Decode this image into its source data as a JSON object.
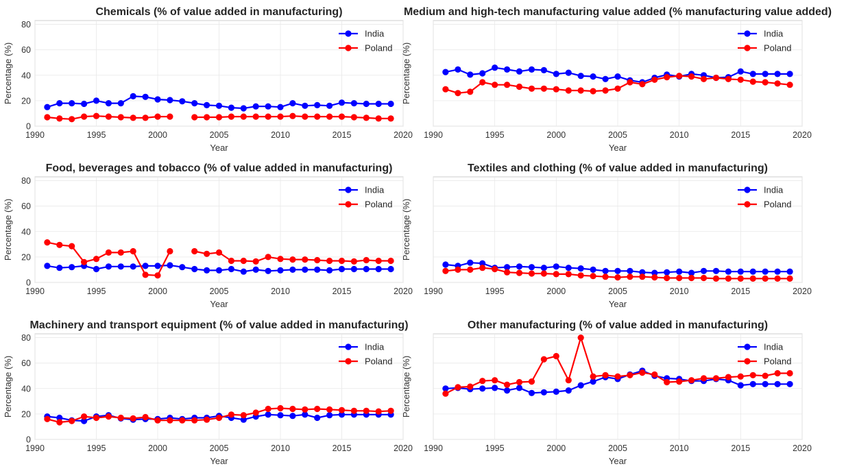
{
  "colors": {
    "India": "#0000ff",
    "Poland": "#ff0000",
    "grid": "#e8e8e8",
    "frame": "#cccccc"
  },
  "chart_data": [
    {
      "type": "line",
      "title": "Chemicals (% of value added in manufacturing)",
      "xlabel": "Year",
      "ylabel": "Percentage (%)",
      "xlim": [
        1990,
        2020
      ],
      "ylim": [
        0,
        83
      ],
      "xticks": [
        "1990",
        "1995",
        "2000",
        "2005",
        "2010",
        "2015",
        "2020"
      ],
      "yticks": [
        "0",
        "20",
        "40",
        "60",
        "80"
      ],
      "grid": true,
      "legend": "top-right",
      "x": [
        1991,
        1992,
        1993,
        1994,
        1995,
        1996,
        1997,
        1998,
        1999,
        2000,
        2001,
        2002,
        2003,
        2004,
        2005,
        2006,
        2007,
        2008,
        2009,
        2010,
        2011,
        2012,
        2013,
        2014,
        2015,
        2016,
        2017,
        2018,
        2019
      ],
      "series": [
        {
          "name": "India",
          "values": [
            15,
            18,
            18,
            17.5,
            20,
            18,
            18,
            23.5,
            23,
            21,
            20.5,
            19.5,
            18,
            16.5,
            16,
            14.5,
            14,
            15.5,
            15.5,
            15,
            18,
            16,
            16.5,
            16,
            18.5,
            18,
            17.5,
            17.5,
            17.5
          ]
        },
        {
          "name": "Poland",
          "values": [
            7,
            6,
            5.5,
            7.5,
            8,
            7.5,
            7,
            6.5,
            6.5,
            7.5,
            7.5,
            null,
            7,
            7,
            7,
            7.5,
            7.5,
            7.5,
            7.5,
            7.5,
            8,
            7.5,
            7.5,
            7.5,
            7.5,
            7,
            6.5,
            6,
            6
          ]
        }
      ]
    },
    {
      "type": "line",
      "title": "Medium and high-tech manufacturing value added (% manufacturing value added)",
      "xlabel": "Year",
      "ylabel": "Percentage (%)",
      "xlim": [
        1990,
        2020
      ],
      "ylim": [
        0,
        83
      ],
      "xticks": [
        "1990",
        "1995",
        "2000",
        "2005",
        "2010",
        "2015",
        "2020"
      ],
      "yticks": [],
      "grid": true,
      "legend": "top-right",
      "x": [
        1991,
        1992,
        1993,
        1994,
        1995,
        1996,
        1997,
        1998,
        1999,
        2000,
        2001,
        2002,
        2003,
        2004,
        2005,
        2006,
        2007,
        2008,
        2009,
        2010,
        2011,
        2012,
        2013,
        2014,
        2015,
        2016,
        2017,
        2018,
        2019
      ],
      "series": [
        {
          "name": "India",
          "values": [
            42.5,
            44.5,
            40.5,
            41.5,
            46,
            44.5,
            43,
            44.5,
            44,
            41,
            42,
            39.5,
            39,
            37,
            39,
            36,
            34.5,
            38,
            40.5,
            39,
            41,
            40,
            38,
            38.5,
            43,
            41,
            41,
            41,
            41
          ]
        },
        {
          "name": "Poland",
          "values": [
            29,
            26,
            27,
            34.5,
            32.5,
            32.5,
            31,
            29.5,
            29.5,
            29,
            28,
            28,
            27.5,
            28,
            29.5,
            34.5,
            33,
            36.5,
            38.5,
            39.5,
            39,
            37,
            38,
            37,
            36.5,
            35,
            34.5,
            33.5,
            32.5
          ]
        }
      ]
    },
    {
      "type": "line",
      "title": "Food, beverages and tobacco (% of value added in manufacturing)",
      "xlabel": "Year",
      "ylabel": "Percentage (%)",
      "xlim": [
        1990,
        2020
      ],
      "ylim": [
        0,
        83
      ],
      "xticks": [
        "1990",
        "1995",
        "2000",
        "2005",
        "2010",
        "2015",
        "2020"
      ],
      "yticks": [
        "0",
        "20",
        "40",
        "60",
        "80"
      ],
      "grid": true,
      "legend": "top-right",
      "x": [
        1991,
        1992,
        1993,
        1994,
        1995,
        1996,
        1997,
        1998,
        1999,
        2000,
        2001,
        2002,
        2003,
        2004,
        2005,
        2006,
        2007,
        2008,
        2009,
        2010,
        2011,
        2012,
        2013,
        2014,
        2015,
        2016,
        2017,
        2018,
        2019
      ],
      "series": [
        {
          "name": "India",
          "values": [
            13,
            11.5,
            12,
            13,
            10.5,
            12.5,
            12.5,
            12.5,
            13,
            13,
            13.5,
            12,
            10.5,
            9.5,
            9.5,
            10.5,
            8.5,
            10,
            9,
            9.5,
            10,
            10,
            10,
            9.5,
            10.5,
            10.5,
            10.5,
            10.5,
            10.5
          ]
        },
        {
          "name": "Poland",
          "values": [
            31.5,
            29.5,
            28.5,
            16,
            18.5,
            23.5,
            23.5,
            24.5,
            6,
            5.5,
            24.5,
            null,
            24.5,
            22.5,
            23.5,
            17,
            17,
            16.5,
            20,
            18.5,
            18,
            18,
            17.5,
            17,
            17,
            16.5,
            17.5,
            17,
            17
          ]
        }
      ]
    },
    {
      "type": "line",
      "title": "Textiles and clothing (% of value added in manufacturing)",
      "xlabel": "Year",
      "ylabel": "Percentage (%)",
      "xlim": [
        1990,
        2020
      ],
      "ylim": [
        0,
        83
      ],
      "xticks": [
        "1990",
        "1995",
        "2000",
        "2005",
        "2010",
        "2015",
        "2020"
      ],
      "yticks": [],
      "grid": true,
      "legend": "top-right",
      "x": [
        1991,
        1992,
        1993,
        1994,
        1995,
        1996,
        1997,
        1998,
        1999,
        2000,
        2001,
        2002,
        2003,
        2004,
        2005,
        2006,
        2007,
        2008,
        2009,
        2010,
        2011,
        2012,
        2013,
        2014,
        2015,
        2016,
        2017,
        2018,
        2019
      ],
      "series": [
        {
          "name": "India",
          "values": [
            14,
            13,
            15.5,
            15,
            11.5,
            12,
            12.5,
            12,
            11.5,
            12.5,
            11.5,
            11,
            10,
            9,
            9,
            9,
            8,
            7.5,
            8,
            8.5,
            7.5,
            9,
            9,
            8.5,
            8.5,
            8.5,
            8.5,
            8.5,
            8.5
          ]
        },
        {
          "name": "Poland",
          "values": [
            9,
            10,
            10,
            11.5,
            10.5,
            8,
            7.5,
            7,
            7,
            6.5,
            6.5,
            5.5,
            5,
            4.5,
            4,
            4.5,
            4.5,
            4,
            3.5,
            3.5,
            3.5,
            3.5,
            3,
            3,
            3,
            3,
            3,
            3,
            3
          ]
        }
      ]
    },
    {
      "type": "line",
      "title": "Machinery and transport equipment (% of value added in manufacturing)",
      "xlabel": "Year",
      "ylabel": "Percentage (%)",
      "xlim": [
        1990,
        2020
      ],
      "ylim": [
        0,
        83
      ],
      "xticks": [
        "1990",
        "1995",
        "2000",
        "2005",
        "2010",
        "2015",
        "2020"
      ],
      "yticks": [
        "0",
        "20",
        "40",
        "60",
        "80"
      ],
      "grid": true,
      "legend": "top-right",
      "x": [
        1991,
        1992,
        1993,
        1994,
        1995,
        1996,
        1997,
        1998,
        1999,
        2000,
        2001,
        2002,
        2003,
        2004,
        2005,
        2006,
        2007,
        2008,
        2009,
        2010,
        2011,
        2012,
        2013,
        2014,
        2015,
        2016,
        2017,
        2018,
        2019
      ],
      "series": [
        {
          "name": "India",
          "values": [
            18,
            17,
            15,
            14.5,
            18,
            19,
            16.5,
            15.5,
            16,
            16,
            17,
            16,
            17,
            17,
            18.5,
            17,
            15.5,
            18,
            19.5,
            19,
            18.5,
            19.5,
            17,
            19,
            19.5,
            19.5,
            19.5,
            19.5,
            19.5
          ]
        },
        {
          "name": "Poland",
          "values": [
            16,
            13.5,
            14.5,
            18,
            17,
            18,
            17,
            16.5,
            17.5,
            15,
            15,
            15,
            15,
            15.5,
            17,
            19.5,
            19,
            21,
            24,
            24.5,
            24,
            23.5,
            24,
            23.5,
            23,
            22.5,
            22.5,
            22,
            22.5
          ]
        }
      ]
    },
    {
      "type": "line",
      "title": "Other manufacturing (% of value added in manufacturing)",
      "xlabel": "Year",
      "ylabel": "Percentage (%)",
      "xlim": [
        1990,
        2020
      ],
      "ylim": [
        0,
        83
      ],
      "xticks": [
        "1990",
        "1995",
        "2000",
        "2005",
        "2010",
        "2015",
        "2020"
      ],
      "yticks": [],
      "grid": true,
      "legend": "top-right",
      "x": [
        1991,
        1992,
        1993,
        1994,
        1995,
        1996,
        1997,
        1998,
        1999,
        2000,
        2001,
        2002,
        2003,
        2004,
        2005,
        2006,
        2007,
        2008,
        2009,
        2010,
        2011,
        2012,
        2013,
        2014,
        2015,
        2016,
        2017,
        2018,
        2019
      ],
      "series": [
        {
          "name": "India",
          "values": [
            40,
            40.5,
            39.5,
            40,
            40.5,
            38.5,
            40.5,
            36.5,
            37,
            37.5,
            38.5,
            42.5,
            45.5,
            49,
            47.5,
            51,
            54,
            50,
            48,
            47.5,
            46,
            46,
            47.5,
            46.5,
            42.5,
            43.5,
            43.5,
            43.5,
            43.5
          ]
        },
        {
          "name": "Poland",
          "values": [
            36,
            41,
            41.5,
            46,
            46.5,
            43,
            45,
            45.5,
            63,
            65.5,
            46.5,
            80,
            49.5,
            50.5,
            49.5,
            50.5,
            52.5,
            51,
            45,
            45.5,
            46.5,
            48,
            48,
            49,
            49.5,
            50.5,
            50,
            52,
            52
          ]
        }
      ]
    }
  ]
}
